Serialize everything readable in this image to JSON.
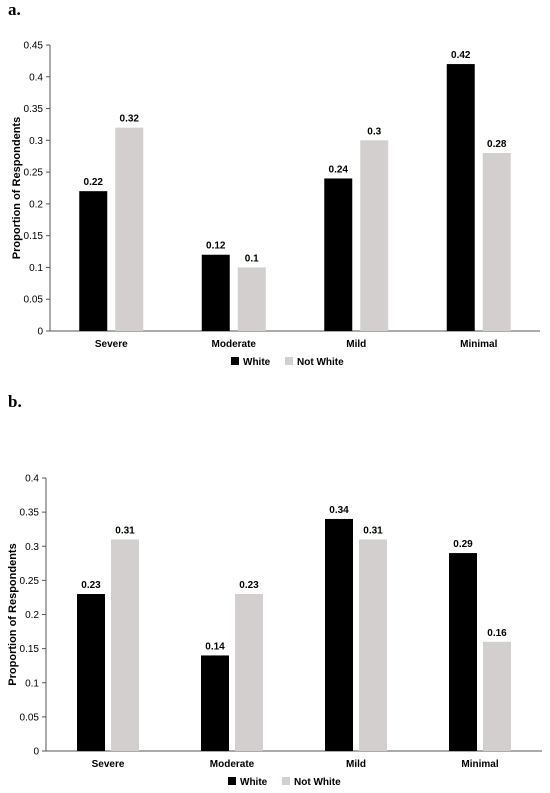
{
  "chart_data": [
    {
      "panel_label": "a.",
      "type": "bar",
      "categories": [
        "Severe",
        "Moderate",
        "Mild",
        "Minimal"
      ],
      "series": [
        {
          "name": "White",
          "color": "#000000",
          "values": [
            0.22,
            0.12,
            0.24,
            0.42
          ]
        },
        {
          "name": "Not White",
          "color": "#d3cfcf",
          "values": [
            0.32,
            0.1,
            0.3,
            0.28
          ]
        }
      ],
      "data_labels": [
        [
          "0.22",
          "0.12",
          "0.24",
          "0.42"
        ],
        [
          "0.32",
          "0.1",
          "0.3",
          "0.28"
        ]
      ],
      "ylabel": "Proportion of Respondents",
      "xlabel": "",
      "ylim": [
        0,
        0.45
      ],
      "yticks": [
        0,
        0.05,
        0.1,
        0.15,
        0.2,
        0.25,
        0.3,
        0.35,
        0.4,
        0.45
      ],
      "ytick_labels": [
        "0",
        "0.05",
        "0.1",
        "0.15",
        "0.2",
        "0.25",
        "0.3",
        "0.35",
        "0.4",
        "0.45"
      ],
      "grid": false,
      "legend_position": "bottom"
    },
    {
      "panel_label": "b.",
      "type": "bar",
      "categories": [
        "Severe",
        "Moderate",
        "Mild",
        "Minimal"
      ],
      "series": [
        {
          "name": "White",
          "color": "#000000",
          "values": [
            0.23,
            0.14,
            0.34,
            0.29
          ]
        },
        {
          "name": "Not White",
          "color": "#d3cfcf",
          "values": [
            0.31,
            0.23,
            0.31,
            0.16
          ]
        }
      ],
      "data_labels": [
        [
          "0.23",
          "0.14",
          "0.34",
          "0.29"
        ],
        [
          "0.31",
          "0.23",
          "0.31",
          "0.16"
        ]
      ],
      "ylabel": "Proportion of Respondents",
      "xlabel": "",
      "ylim": [
        0,
        0.4
      ],
      "yticks": [
        0,
        0.05,
        0.1,
        0.15,
        0.2,
        0.25,
        0.3,
        0.35,
        0.4
      ],
      "ytick_labels": [
        "0",
        "0.05",
        "0.1",
        "0.15",
        "0.2",
        "0.25",
        "0.3",
        "0.35",
        "0.4"
      ],
      "grid": false,
      "legend_position": "bottom"
    }
  ]
}
